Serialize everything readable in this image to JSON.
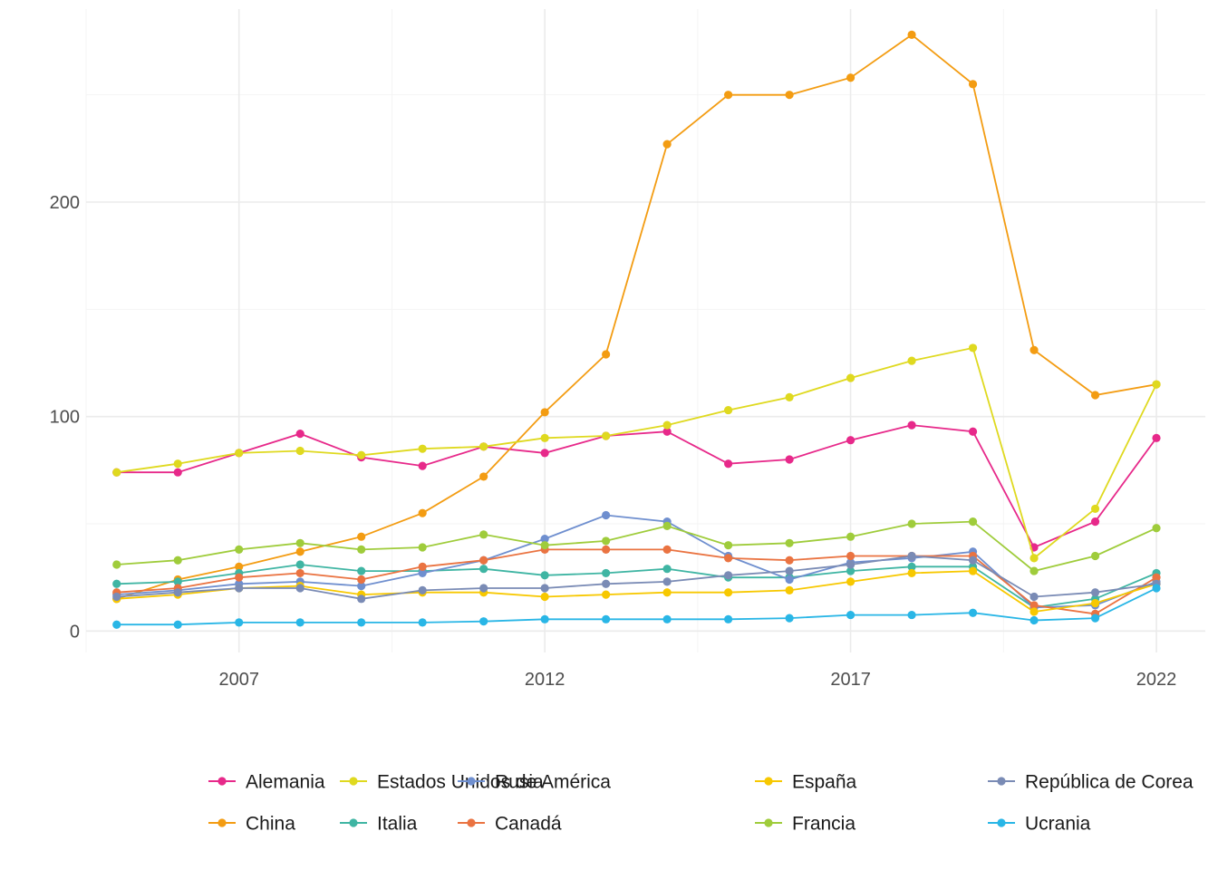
{
  "chart_data": {
    "type": "line",
    "title": "",
    "xlabel": "",
    "ylabel": "",
    "xlim": [
      2004.5,
      2022.8
    ],
    "ylim": [
      -10,
      290
    ],
    "x_ticks": [
      2007,
      2012,
      2017,
      2022
    ],
    "y_ticks": [
      0,
      100,
      200
    ],
    "grid": true,
    "legend_position": "bottom",
    "x": [
      2005,
      2006,
      2007,
      2008,
      2009,
      2010,
      2011,
      2012,
      2013,
      2014,
      2015,
      2016,
      2017,
      2018,
      2019,
      2020,
      2021,
      2022
    ],
    "series": [
      {
        "name": "Alemania",
        "color": "#e7298a",
        "values": [
          74,
          74,
          83,
          92,
          81,
          77,
          86,
          83,
          91,
          93,
          78,
          80,
          89,
          96,
          93,
          39,
          51,
          90
        ]
      },
      {
        "name": "China",
        "color": "#f39c12",
        "values": [
          15,
          24,
          30,
          37,
          44,
          55,
          72,
          102,
          129,
          227,
          250,
          250,
          258,
          278,
          255,
          131,
          110,
          115
        ]
      },
      {
        "name": "Estados Unidos de América",
        "color": "#dfd91f",
        "values": [
          74,
          78,
          83,
          84,
          82,
          85,
          86,
          90,
          91,
          96,
          103,
          109,
          118,
          126,
          132,
          34,
          57,
          115
        ]
      },
      {
        "name": "Italia",
        "color": "#3fb5a3",
        "values": [
          22,
          23,
          27,
          31,
          28,
          28,
          29,
          26,
          27,
          29,
          25,
          25,
          28,
          30,
          30,
          11,
          15,
          27
        ]
      },
      {
        "name": "Rusia",
        "color": "#6f8fcf",
        "values": [
          17,
          19,
          22,
          23,
          21,
          27,
          33,
          43,
          54,
          51,
          35,
          24,
          32,
          34,
          37,
          11,
          12,
          23
        ]
      },
      {
        "name": "Canadá",
        "color": "#ea7341",
        "values": [
          18,
          20,
          25,
          27,
          24,
          30,
          33,
          38,
          38,
          38,
          34,
          33,
          35,
          35,
          35,
          12,
          8,
          25
        ]
      },
      {
        "name": "España",
        "color": "#f7c800",
        "values": [
          15,
          17,
          20,
          21,
          17,
          18,
          18,
          16,
          17,
          18,
          18,
          19,
          23,
          27,
          28,
          9,
          13,
          22
        ]
      },
      {
        "name": "Francia",
        "color": "#9fcc3b",
        "values": [
          31,
          33,
          38,
          41,
          38,
          39,
          45,
          40,
          42,
          49,
          40,
          41,
          44,
          50,
          51,
          28,
          35,
          48
        ]
      },
      {
        "name": "República de Corea",
        "color": "#7a8bb5",
        "values": [
          16,
          18,
          20,
          20,
          15,
          19,
          20,
          20,
          22,
          23,
          26,
          28,
          31,
          35,
          33,
          16,
          18,
          22
        ]
      },
      {
        "name": "Ucrania",
        "color": "#29b6e6",
        "values": [
          3,
          3,
          4,
          4,
          4,
          4,
          4.5,
          5.5,
          5.5,
          5.5,
          5.5,
          6,
          7.5,
          7.5,
          8.5,
          5,
          6,
          20
        ]
      }
    ]
  }
}
